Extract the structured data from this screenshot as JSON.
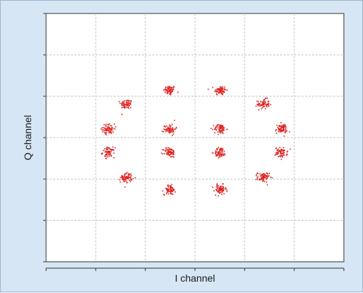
{
  "chart_data": {
    "type": "scatter",
    "title": "",
    "xlabel": "I channel",
    "ylabel": "Q channel",
    "xlim": [
      -1,
      1
    ],
    "ylim": [
      -1,
      1
    ],
    "grid": true,
    "grid_style": "dashed",
    "legend": "none",
    "point_color": "#e02020",
    "tick_divisions": 6,
    "series": [
      {
        "points_per_cluster": 70,
        "cluster_spread": 0.02,
        "centers": [
          [
            -0.17,
            0.38
          ],
          [
            0.17,
            0.38
          ],
          [
            -0.46,
            0.27
          ],
          [
            0.46,
            0.27
          ],
          [
            -0.58,
            0.07
          ],
          [
            0.58,
            0.07
          ],
          [
            -0.58,
            -0.12
          ],
          [
            0.58,
            -0.12
          ],
          [
            -0.46,
            -0.32
          ],
          [
            0.46,
            -0.32
          ],
          [
            -0.17,
            -0.42
          ],
          [
            0.17,
            -0.42
          ],
          [
            -0.17,
            0.07
          ],
          [
            0.17,
            0.07
          ],
          [
            -0.17,
            -0.12
          ],
          [
            0.17,
            -0.12
          ]
        ]
      }
    ]
  },
  "colors": {
    "frame_background": "#d6e6f5",
    "plot_background": "#ffffff",
    "grid_color": "#c4c4c4",
    "axis_color": "#333333"
  }
}
